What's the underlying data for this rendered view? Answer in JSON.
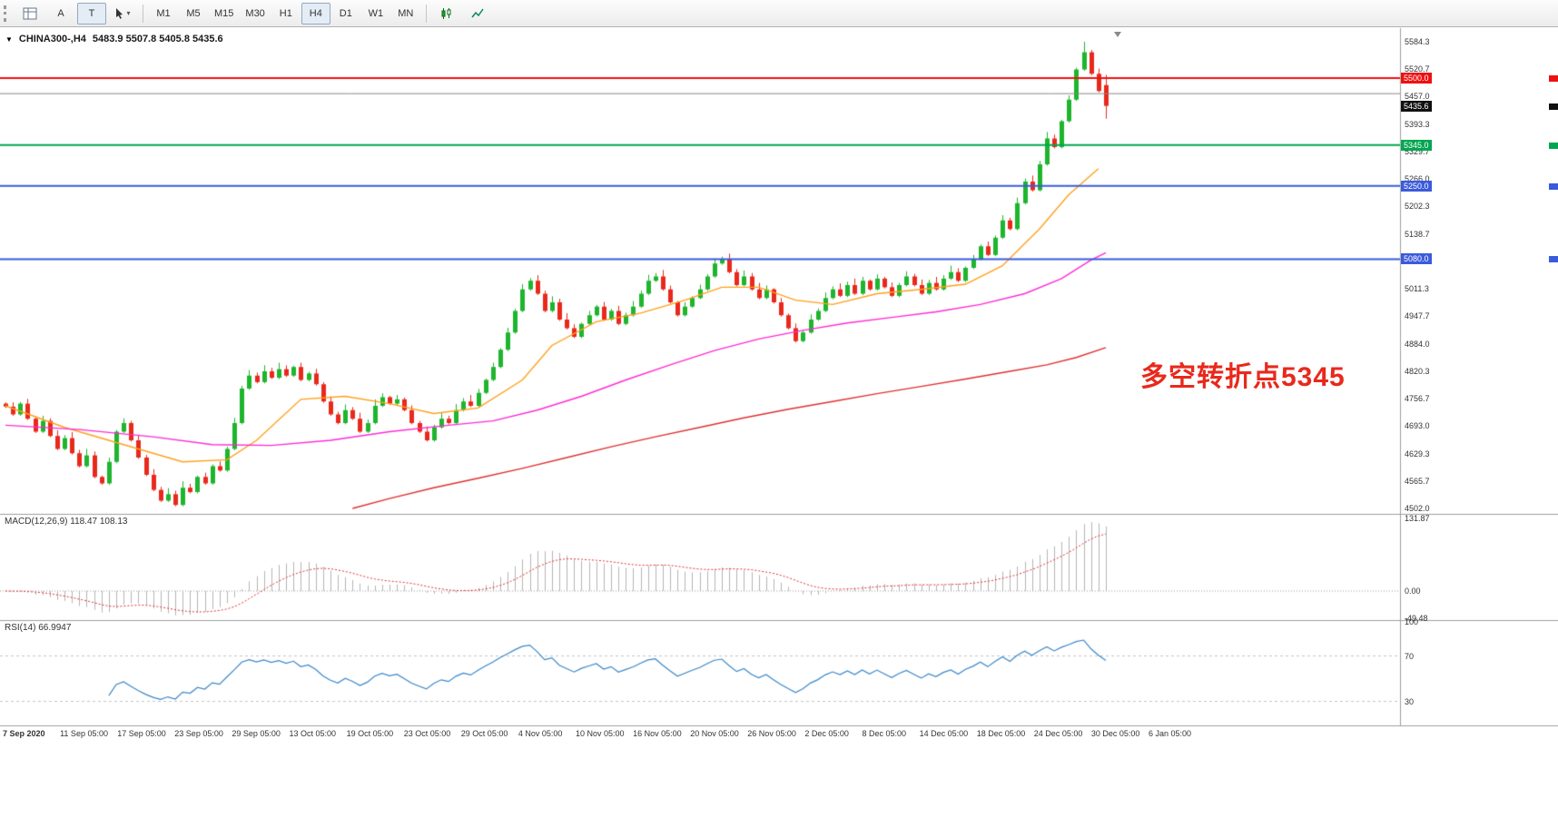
{
  "toolbar": {
    "a_label": "A",
    "t_label": "T",
    "timeframes": [
      "M1",
      "M5",
      "M15",
      "M30",
      "H1",
      "H4",
      "D1",
      "W1",
      "MN"
    ],
    "active_timeframe": "H4"
  },
  "chart": {
    "symbol_header": {
      "symbol_tf": "CHINA300-,H4",
      "ohlc": "5483.9 5507.8 5405.8 5435.6"
    },
    "annotation": {
      "text": "多空转折点5345",
      "color": "#e8291c"
    },
    "price_axis": {
      "ticks": [
        "5584.3",
        "5520.7",
        "5457.0",
        "5393.3",
        "5329.7",
        "5266.0",
        "5202.3",
        "5138.7",
        "5011.3",
        "4947.7",
        "4884.0",
        "4820.3",
        "4756.7",
        "4693.0",
        "4629.3",
        "4565.7",
        "4502.0"
      ]
    },
    "levels": [
      {
        "price": 5500.0,
        "label": "5500.0",
        "color": "#ee1111",
        "width": 2
      },
      {
        "price": 5464.0,
        "label": "",
        "color": "#8a8a8a",
        "width": 1
      },
      {
        "price": 5435.6,
        "label": "5435.6",
        "color": "#111111",
        "width": 0
      },
      {
        "price": 5345.0,
        "label": "5345.0",
        "color": "#00a651",
        "width": 2
      },
      {
        "price": 5250.0,
        "label": "5250.0",
        "color": "#3b5bdb",
        "width": 2
      },
      {
        "price": 5080.0,
        "label": "5080.0",
        "color": "#3b5bdb",
        "width": 2
      }
    ],
    "time_axis": {
      "labels": [
        "7 Sep 2020",
        "11 Sep 05:00",
        "17 Sep 05:00",
        "23 Sep 05:00",
        "29 Sep 05:00",
        "13 Oct 05:00",
        "19 Oct 05:00",
        "23 Oct 05:00",
        "29 Oct 05:00",
        "4 Nov 05:00",
        "10 Nov 05:00",
        "16 Nov 05:00",
        "20 Nov 05:00",
        "26 Nov 05:00",
        "2 Dec 05:00",
        "8 Dec 05:00",
        "14 Dec 05:00",
        "18 Dec 05:00",
        "24 Dec 05:00",
        "30 Dec 05:00",
        "6 Jan 05:00"
      ]
    }
  },
  "chart_data": {
    "type": "candlestick",
    "symbol": "CHINA300-",
    "timeframe": "H4",
    "open": 5483.9,
    "high": 5507.8,
    "low": 5405.8,
    "close": 5435.6,
    "price_axis_range": [
      4502.0,
      5584.3
    ],
    "first_open": 4745,
    "closes": [
      4738,
      4720,
      4745,
      4710,
      4680,
      4705,
      4670,
      4640,
      4665,
      4630,
      4600,
      4625,
      4575,
      4560,
      4610,
      4680,
      4700,
      4660,
      4620,
      4580,
      4545,
      4520,
      4535,
      4510,
      4550,
      4540,
      4575,
      4560,
      4600,
      4590,
      4640,
      4700,
      4780,
      4810,
      4795,
      4820,
      4805,
      4825,
      4810,
      4830,
      4800,
      4815,
      4790,
      4750,
      4720,
      4700,
      4730,
      4710,
      4680,
      4700,
      4740,
      4760,
      4745,
      4755,
      4730,
      4700,
      4680,
      4660,
      4690,
      4710,
      4700,
      4730,
      4750,
      4740,
      4770,
      4800,
      4830,
      4870,
      4910,
      4960,
      5010,
      5030,
      5000,
      4960,
      4980,
      4940,
      4920,
      4900,
      4930,
      4950,
      4970,
      4940,
      4960,
      4930,
      4950,
      4970,
      5000,
      5030,
      5040,
      5010,
      4980,
      4950,
      4970,
      4990,
      5010,
      5040,
      5070,
      5080,
      5050,
      5020,
      5040,
      5010,
      4990,
      5010,
      4980,
      4950,
      4920,
      4890,
      4910,
      4940,
      4960,
      4990,
      5010,
      4995,
      5020,
      5000,
      5030,
      5010,
      5035,
      5015,
      4995,
      5020,
      5040,
      5020,
      5000,
      5025,
      5010,
      5035,
      5050,
      5030,
      5060,
      5080,
      5110,
      5090,
      5130,
      5170,
      5150,
      5210,
      5260,
      5240,
      5300,
      5360,
      5340,
      5400,
      5450,
      5520,
      5560,
      5510,
      5470,
      5436
    ],
    "last_candle": [
      5483.9,
      5507.8,
      5405.8,
      5435.6
    ],
    "moving_averages": [
      {
        "name": "ma-fast",
        "color": "#ff9f1a",
        "points": [
          [
            0,
            4740
          ],
          [
            8,
            4690
          ],
          [
            16,
            4650
          ],
          [
            24,
            4610
          ],
          [
            30,
            4615
          ],
          [
            34,
            4660
          ],
          [
            40,
            4755
          ],
          [
            46,
            4762
          ],
          [
            52,
            4745
          ],
          [
            58,
            4722
          ],
          [
            64,
            4735
          ],
          [
            70,
            4800
          ],
          [
            74,
            4880
          ],
          [
            80,
            4935
          ],
          [
            86,
            4955
          ],
          [
            92,
            4985
          ],
          [
            97,
            5015
          ],
          [
            102,
            5015
          ],
          [
            107,
            4985
          ],
          [
            112,
            4975
          ],
          [
            118,
            5000
          ],
          [
            124,
            5010
          ],
          [
            130,
            5022
          ],
          [
            135,
            5065
          ],
          [
            140,
            5150
          ],
          [
            144,
            5230
          ],
          [
            148,
            5290
          ]
        ]
      },
      {
        "name": "ma-mid",
        "color": "#ff2ad4",
        "points": [
          [
            0,
            4695
          ],
          [
            10,
            4685
          ],
          [
            20,
            4668
          ],
          [
            28,
            4650
          ],
          [
            36,
            4648
          ],
          [
            44,
            4660
          ],
          [
            52,
            4680
          ],
          [
            60,
            4695
          ],
          [
            66,
            4705
          ],
          [
            72,
            4730
          ],
          [
            78,
            4762
          ],
          [
            84,
            4800
          ],
          [
            90,
            4835
          ],
          [
            96,
            4868
          ],
          [
            102,
            4895
          ],
          [
            108,
            4915
          ],
          [
            114,
            4932
          ],
          [
            120,
            4945
          ],
          [
            126,
            4958
          ],
          [
            132,
            4975
          ],
          [
            138,
            5000
          ],
          [
            143,
            5035
          ],
          [
            147,
            5078
          ],
          [
            149,
            5095
          ]
        ]
      },
      {
        "name": "ma-slow",
        "color": "#e03030",
        "points": [
          [
            47,
            4502
          ],
          [
            52,
            4525
          ],
          [
            58,
            4550
          ],
          [
            64,
            4572
          ],
          [
            70,
            4595
          ],
          [
            76,
            4620
          ],
          [
            82,
            4645
          ],
          [
            88,
            4668
          ],
          [
            94,
            4690
          ],
          [
            100,
            4712
          ],
          [
            106,
            4732
          ],
          [
            112,
            4750
          ],
          [
            118,
            4768
          ],
          [
            124,
            4785
          ],
          [
            130,
            4802
          ],
          [
            136,
            4820
          ],
          [
            141,
            4835
          ],
          [
            145,
            4852
          ],
          [
            149,
            4875
          ]
        ]
      }
    ]
  },
  "macd": {
    "title": "MACD(12,26,9)",
    "main_value": "118.47",
    "signal_value": "108.13",
    "fast": 12,
    "slow": 26,
    "signal": 9,
    "axis_labels": [
      "131.87",
      "0.00",
      "-49.48"
    ],
    "range": [
      -49.48,
      131.87
    ],
    "hist_color": "#b4b4b4",
    "signal_color": "#e03030"
  },
  "rsi": {
    "title": "RSI(14)",
    "value": "66.9947",
    "period": 14,
    "axis_labels": [
      "100",
      "70",
      "30"
    ],
    "levels": [
      70,
      30
    ],
    "line_color": "#3a87c8"
  }
}
